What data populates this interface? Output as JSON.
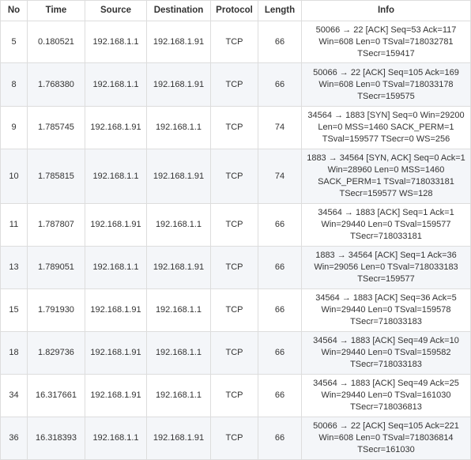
{
  "table": {
    "columns": [
      "No",
      "Time",
      "Source",
      "Destination",
      "Protocol",
      "Length",
      "Info"
    ],
    "rows": [
      {
        "no": "5",
        "time": "0.180521",
        "source": "192.168.1.1",
        "destination": "192.168.1.91",
        "protocol": "TCP",
        "length": "66",
        "info": [
          "50066 → 22 [ACK] Seq=53 Ack=117",
          "Win=608 Len=0 TSval=718032781",
          "TSecr=159417"
        ]
      },
      {
        "no": "8",
        "time": "1.768380",
        "source": "192.168.1.1",
        "destination": "192.168.1.91",
        "protocol": "TCP",
        "length": "66",
        "info": [
          "50066 → 22 [ACK] Seq=105 Ack=169",
          "Win=608 Len=0 TSval=718033178",
          "TSecr=159575"
        ]
      },
      {
        "no": "9",
        "time": "1.785745",
        "source": "192.168.1.91",
        "destination": "192.168.1.1",
        "protocol": "TCP",
        "length": "74",
        "info": [
          "34564 → 1883 [SYN] Seq=0 Win=29200",
          "Len=0 MSS=1460 SACK_PERM=1",
          "TSval=159577 TSecr=0 WS=256"
        ]
      },
      {
        "no": "10",
        "time": "1.785815",
        "source": "192.168.1.1",
        "destination": "192.168.1.91",
        "protocol": "TCP",
        "length": "74",
        "info": [
          "1883 → 34564 [SYN, ACK] Seq=0 Ack=1",
          "Win=28960 Len=0 MSS=1460",
          "SACK_PERM=1 TSval=718033181",
          "TSecr=159577 WS=128"
        ]
      },
      {
        "no": "11",
        "time": "1.787807",
        "source": "192.168.1.91",
        "destination": "192.168.1.1",
        "protocol": "TCP",
        "length": "66",
        "info": [
          "34564 → 1883 [ACK] Seq=1 Ack=1",
          "Win=29440 Len=0 TSval=159577",
          "TSecr=718033181"
        ]
      },
      {
        "no": "13",
        "time": "1.789051",
        "source": "192.168.1.1",
        "destination": "192.168.1.91",
        "protocol": "TCP",
        "length": "66",
        "info": [
          "1883 → 34564 [ACK] Seq=1 Ack=36",
          "Win=29056 Len=0 TSval=718033183",
          "TSecr=159577"
        ]
      },
      {
        "no": "15",
        "time": "1.791930",
        "source": "192.168.1.91",
        "destination": "192.168.1.1",
        "protocol": "TCP",
        "length": "66",
        "info": [
          "34564 → 1883 [ACK] Seq=36 Ack=5",
          "Win=29440 Len=0 TSval=159578",
          "TSecr=718033183"
        ]
      },
      {
        "no": "18",
        "time": "1.829736",
        "source": "192.168.1.91",
        "destination": "192.168.1.1",
        "protocol": "TCP",
        "length": "66",
        "info": [
          "34564 → 1883 [ACK] Seq=49 Ack=10",
          "Win=29440 Len=0 TSval=159582",
          "TSecr=718033183"
        ]
      },
      {
        "no": "34",
        "time": "16.317661",
        "source": "192.168.1.91",
        "destination": "192.168.1.1",
        "protocol": "TCP",
        "length": "66",
        "info": [
          "34564 → 1883 [ACK] Seq=49 Ack=25",
          "Win=29440 Len=0 TSval=161030",
          "TSecr=718036813"
        ]
      },
      {
        "no": "36",
        "time": "16.318393",
        "source": "192.168.1.1",
        "destination": "192.168.1.91",
        "protocol": "TCP",
        "length": "66",
        "info": [
          "50066 → 22 [ACK] Seq=105 Ack=221",
          "Win=608 Len=0 TSval=718036814",
          "TSecr=161030"
        ]
      }
    ]
  }
}
